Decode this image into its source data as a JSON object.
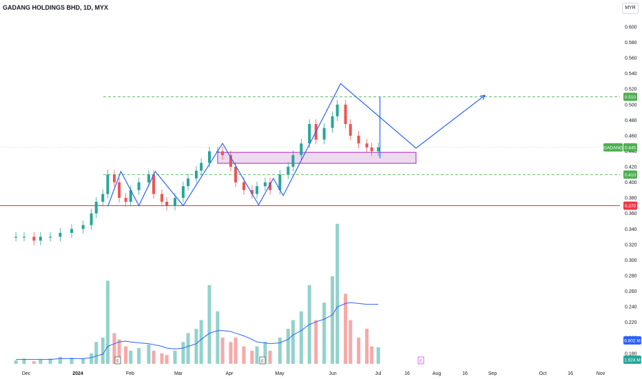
{
  "header": {
    "title": "GADANG HOLDINGS BHD, 1D, MYX",
    "currency": "MYR"
  },
  "price_axis": {
    "ticks": [
      "0.600",
      "0.580",
      "0.560",
      "0.540",
      "0.520",
      "0.500",
      "0.480",
      "0.460",
      "0.440",
      "0.420",
      "0.400",
      "0.380",
      "0.360",
      "0.340",
      "0.320",
      "0.300",
      "0.280",
      "0.260",
      "0.240",
      "0.220",
      "0.200",
      "0.180"
    ]
  },
  "time_axis": {
    "labels": [
      "Dec",
      "2024",
      "Feb",
      "Mar",
      "Apr",
      "May",
      "Jun",
      "Jul",
      "16",
      "Aug",
      "16",
      "Sep",
      "Oct",
      "16",
      "Nov"
    ]
  },
  "tags": {
    "symbol": "GADANG",
    "last": "0.445",
    "resistance": "0.510",
    "support": "0.410",
    "base": "0.370",
    "vol_ma": "6.802 M",
    "vol": "1.924 M"
  },
  "earnings_marks": [
    "E",
    "E",
    "E"
  ],
  "colors": {
    "up": "#26a69a",
    "down": "#ef5350",
    "pattern": "#2962ff",
    "zone": "#9c27b0",
    "level": "#4caf50",
    "base": "#f23645",
    "vol_ma": "#2962ff"
  },
  "chart_data": {
    "type": "candlestick",
    "title": "GADANG HOLDINGS BHD, 1D, MYX",
    "currency": "MYR",
    "ylim": [
      0.17,
      0.61
    ],
    "grid": false,
    "x": [
      "2023-11-23",
      "2023-11-28",
      "2023-12-04",
      "2023-12-08",
      "2023-12-14",
      "2023-12-20",
      "2023-12-27",
      "2024-01-03",
      "2024-01-08",
      "2024-01-11",
      "2024-01-15",
      "2024-01-18",
      "2024-01-22",
      "2024-01-25",
      "2024-01-29",
      "2024-02-01",
      "2024-02-06",
      "2024-02-12",
      "2024-02-15",
      "2024-02-20",
      "2024-02-23",
      "2024-02-28",
      "2024-03-04",
      "2024-03-07",
      "2024-03-12",
      "2024-03-15",
      "2024-03-20",
      "2024-03-25",
      "2024-03-28",
      "2024-04-02",
      "2024-04-05",
      "2024-04-10",
      "2024-04-15",
      "2024-04-18",
      "2024-04-23",
      "2024-04-26",
      "2024-05-02",
      "2024-05-07",
      "2024-05-10",
      "2024-05-15",
      "2024-05-20",
      "2024-05-24",
      "2024-05-29",
      "2024-06-03",
      "2024-06-06",
      "2024-06-11",
      "2024-06-14",
      "2024-06-19",
      "2024-06-24",
      "2024-06-27",
      "2024-07-01"
    ],
    "close": [
      0.33,
      0.33,
      0.325,
      0.33,
      0.33,
      0.335,
      0.34,
      0.345,
      0.36,
      0.375,
      0.385,
      0.41,
      0.4,
      0.38,
      0.375,
      0.39,
      0.4,
      0.41,
      0.385,
      0.375,
      0.37,
      0.38,
      0.395,
      0.405,
      0.415,
      0.425,
      0.44,
      0.44,
      0.435,
      0.42,
      0.4,
      0.39,
      0.385,
      0.395,
      0.4,
      0.39,
      0.41,
      0.42,
      0.435,
      0.45,
      0.475,
      0.455,
      0.47,
      0.485,
      0.5,
      0.475,
      0.46,
      0.45,
      0.445,
      0.44,
      0.445
    ],
    "volume_m": [
      0.4,
      0.6,
      0.3,
      0.5,
      0.6,
      0.8,
      0.7,
      0.6,
      1.2,
      2.5,
      3.0,
      9.5,
      3.5,
      2.8,
      2.0,
      1.5,
      1.8,
      2.2,
      1.5,
      1.2,
      1.0,
      1.5,
      2.5,
      3.5,
      4.0,
      5.0,
      9.0,
      6.0,
      3.0,
      2.5,
      3.0,
      2.0,
      1.5,
      2.0,
      2.5,
      1.5,
      3.0,
      4.0,
      5.0,
      6.0,
      9.0,
      5.0,
      7.0,
      10.0,
      16.0,
      8.0,
      5.0,
      3.0,
      4.0,
      2.0,
      1.9
    ],
    "volume_ma_m": [
      0.5,
      0.5,
      0.5,
      0.5,
      0.5,
      0.6,
      0.6,
      0.6,
      0.7,
      0.9,
      1.1,
      2.0,
      2.3,
      2.5,
      2.6,
      2.5,
      2.4,
      2.3,
      2.2,
      2.0,
      1.8,
      1.7,
      1.8,
      2.0,
      2.3,
      2.8,
      3.5,
      3.8,
      3.8,
      3.7,
      3.5,
      3.2,
      2.8,
      2.5,
      2.4,
      2.3,
      2.4,
      2.8,
      3.3,
      3.8,
      4.5,
      4.8,
      5.1,
      5.6,
      6.5,
      6.9,
      7.0,
      6.9,
      6.8,
      6.8,
      6.802
    ],
    "levels": [
      {
        "label": "0.510",
        "price": 0.51,
        "style": "dashed",
        "color": "#4caf50"
      },
      {
        "label": "0.410",
        "price": 0.41,
        "style": "dashed",
        "color": "#4caf50"
      },
      {
        "label": "0.370",
        "price": 0.37,
        "style": "solid",
        "color": "#f23645"
      }
    ],
    "zone": {
      "from_date": "2024-03-25",
      "to_date": "2024-07-24",
      "low": 0.428,
      "high": 0.435
    },
    "pattern_path": [
      [
        "2024-01-18",
        0.369
      ],
      [
        "2024-01-26",
        0.414
      ],
      [
        "2024-02-06",
        0.37
      ],
      [
        "2024-02-16",
        0.414
      ],
      [
        "2024-03-04",
        0.37
      ],
      [
        "2024-03-28",
        0.45
      ],
      [
        "2024-04-19",
        0.371
      ],
      [
        "2024-04-28",
        0.405
      ],
      [
        "2024-05-04",
        0.383
      ],
      [
        "2024-06-08",
        0.527
      ],
      [
        "2024-07-24",
        0.444
      ],
      [
        "2024-09-04",
        0.512
      ]
    ],
    "target_line": {
      "date": "2024-07-02",
      "from": 0.431,
      "to": 0.51
    }
  }
}
